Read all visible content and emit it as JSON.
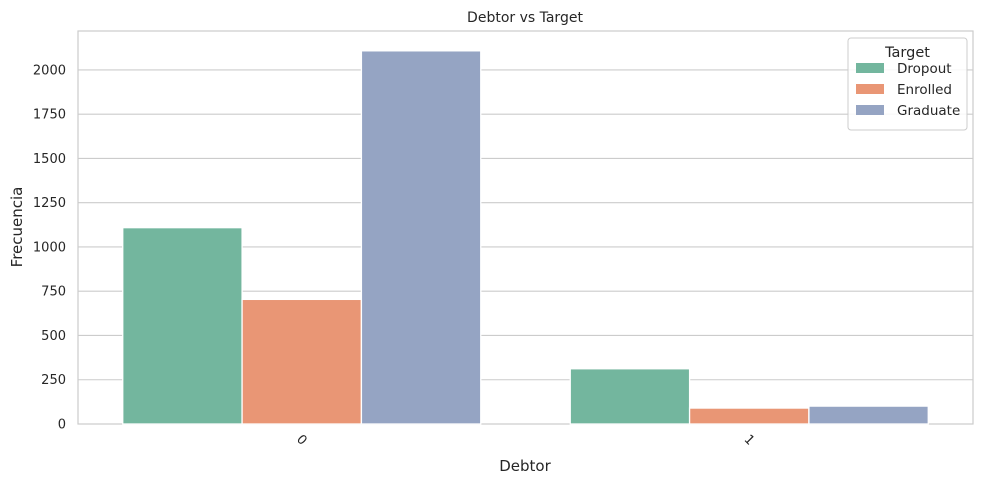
{
  "chart_data": {
    "type": "bar",
    "title": "Debtor vs Target",
    "xlabel": "Debtor",
    "ylabel": "Frecuencia",
    "categories": [
      "0",
      "1"
    ],
    "series": [
      {
        "name": "Dropout",
        "values": [
          1109,
          312
        ],
        "color": "#73b69e"
      },
      {
        "name": "Enrolled",
        "values": [
          704,
          90
        ],
        "color": "#e99675"
      },
      {
        "name": "Graduate",
        "values": [
          2108,
          101
        ],
        "color": "#95a4c3"
      }
    ],
    "ylim": [
      0,
      2220
    ],
    "yticks": [
      0,
      250,
      500,
      750,
      1000,
      1250,
      1500,
      1750,
      2000
    ],
    "grid": "horizontal",
    "xtick_rotation": 45,
    "legend": {
      "title": "Target",
      "placement": "top-right"
    }
  }
}
